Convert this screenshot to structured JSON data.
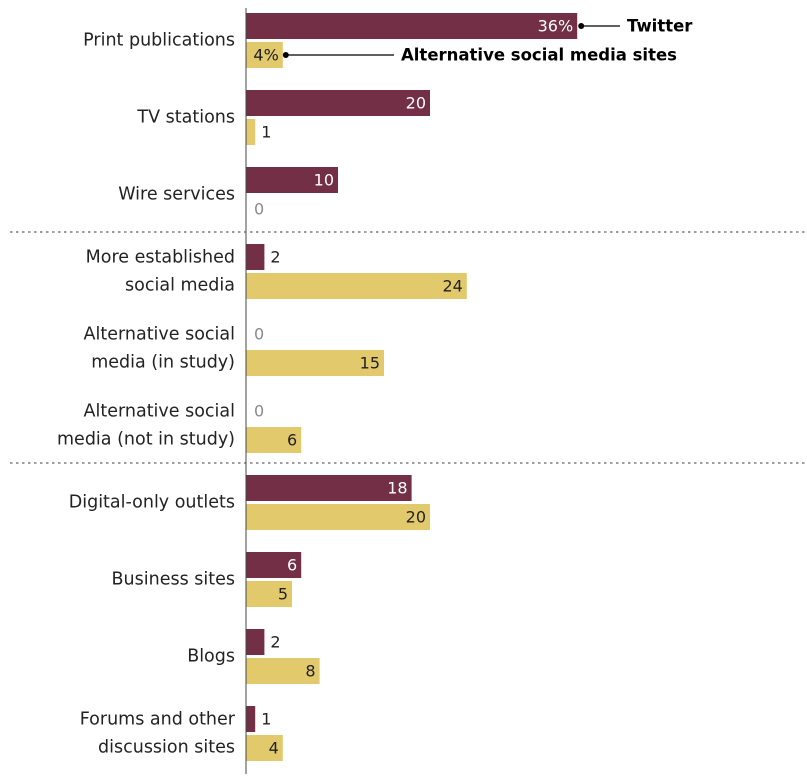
{
  "chart_data": {
    "type": "bar",
    "orientation": "horizontal",
    "categories": [
      [
        "Print publications"
      ],
      [
        "TV stations"
      ],
      [
        "Wire services"
      ],
      [
        "More established",
        "social media"
      ],
      [
        "Alternative social",
        "media (in study)"
      ],
      [
        "Alternative social",
        "media (not in study)"
      ],
      [
        "Digital-only outlets"
      ],
      [
        "Business sites"
      ],
      [
        "Blogs"
      ],
      [
        "Forums and other",
        "discussion sites"
      ]
    ],
    "series": [
      {
        "name": "Twitter",
        "color": "#722f45",
        "text_color": "#ffffff",
        "values": [
          36,
          20,
          10,
          2,
          0,
          0,
          18,
          6,
          2,
          1
        ],
        "labels": [
          "36%",
          "20",
          "10",
          "2",
          "0",
          "0",
          "18",
          "6",
          "2",
          "1"
        ]
      },
      {
        "name": "Alternative social media sites",
        "color": "#e1c96c",
        "text_color": "#222222",
        "values": [
          4,
          1,
          0,
          24,
          15,
          6,
          20,
          5,
          8,
          4
        ],
        "labels": [
          "4%",
          "1",
          "0",
          "24",
          "15",
          "6",
          "20",
          "5",
          "8",
          "4"
        ]
      }
    ],
    "separators_after": [
      2,
      5
    ],
    "grid": false,
    "legend": "annotations next to the top bars"
  },
  "colors": {
    "twitter": "#722f45",
    "alt": "#e1c96c",
    "axis": "#444444",
    "separator": "#666666"
  }
}
